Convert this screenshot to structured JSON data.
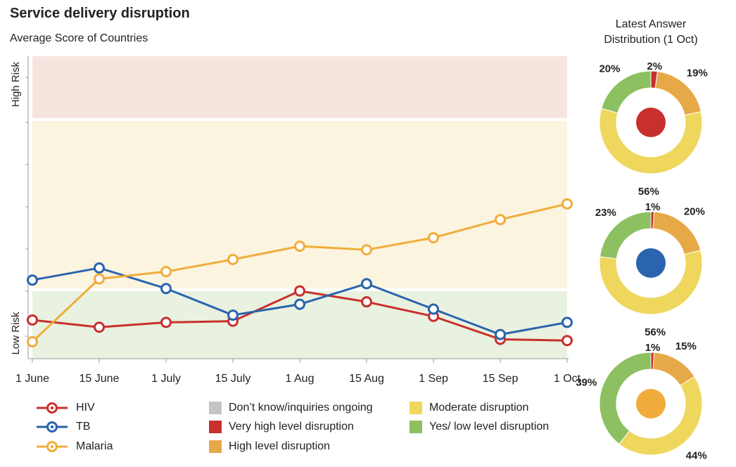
{
  "title": "Service delivery disruption",
  "subtitle": "Average Score of Countries",
  "donut_heading_line1": "Latest Answer",
  "donut_heading_line2": "Distribution (1 Oct)",
  "colors": {
    "hiv": "#c8302d",
    "tb": "#2a64ae",
    "malaria": "#f0ad3c",
    "high_band": "#f7e4de",
    "mid_band": "#fbf4df",
    "low_band": "#e9f2e0",
    "very_high": "#c8302d",
    "high": "#e7a847",
    "moderate": "#efd75d",
    "low": "#8cc061",
    "dont_know": "#c4c4c4"
  },
  "chart_data": [
    {
      "type": "line",
      "title": "Service delivery disruption",
      "subtitle": "Average Score of Countries",
      "x": [
        "1 June",
        "15 June",
        "1 July",
        "15 July",
        "1 Aug",
        "15 Aug",
        "1 Sep",
        "15 Sep",
        "1 Oct"
      ],
      "ylim": [
        0,
        1
      ],
      "band_labels": {
        "high": "High Risk",
        "low": "Low Risk"
      },
      "grid": false,
      "legend_position": "bottom-left",
      "series": [
        {
          "name": "HIV",
          "color": "#c8302d",
          "values": [
            0.872,
            0.896,
            0.88,
            0.876,
            0.776,
            0.812,
            0.86,
            0.936,
            0.94
          ]
        },
        {
          "name": "TB",
          "color": "#2a64ae",
          "values": [
            0.74,
            0.7,
            0.768,
            0.856,
            0.82,
            0.752,
            0.836,
            0.92,
            0.88
          ]
        },
        {
          "name": "Malaria",
          "color": "#f0ad3c",
          "values": [
            0.944,
            0.736,
            0.712,
            0.672,
            0.628,
            0.64,
            0.6,
            0.54,
            0.488
          ]
        }
      ]
    },
    {
      "type": "pie",
      "series_name": "HIV",
      "slices": [
        {
          "label": "Very high level disruption",
          "value": 2,
          "display": "2%",
          "color": "#c8302d"
        },
        {
          "label": "High level disruption",
          "value": 19,
          "display": "19%",
          "color": "#e7a847"
        },
        {
          "label": "Moderate disruption",
          "value": 56,
          "display": "56%",
          "color": "#efd75d"
        },
        {
          "label": "Yes/ low level disruption",
          "value": 20,
          "display": "20%",
          "color": "#8cc061"
        }
      ]
    },
    {
      "type": "pie",
      "series_name": "TB",
      "slices": [
        {
          "label": "Very high level disruption",
          "value": 1,
          "display": "1%",
          "color": "#c8302d"
        },
        {
          "label": "High level disruption",
          "value": 20,
          "display": "20%",
          "color": "#e7a847"
        },
        {
          "label": "Moderate disruption",
          "value": 56,
          "display": "56%",
          "color": "#efd75d"
        },
        {
          "label": "Yes/ low level disruption",
          "value": 23,
          "display": "23%",
          "color": "#8cc061"
        }
      ]
    },
    {
      "type": "pie",
      "series_name": "Malaria",
      "slices": [
        {
          "label": "Very high level disruption",
          "value": 1,
          "display": "1%",
          "color": "#c8302d"
        },
        {
          "label": "High level disruption",
          "value": 15,
          "display": "15%",
          "color": "#e7a847"
        },
        {
          "label": "Moderate disruption",
          "value": 44,
          "display": "44%",
          "color": "#efd75d"
        },
        {
          "label": "Yes/ low level disruption",
          "value": 39,
          "display": "39%",
          "color": "#8cc061"
        }
      ]
    }
  ],
  "legend": {
    "lines": [
      {
        "label": "HIV",
        "color": "#c8302d"
      },
      {
        "label": "TB",
        "color": "#2a64ae"
      },
      {
        "label": "Malaria",
        "color": "#f0ad3c"
      }
    ],
    "categories_col1": [
      {
        "label": "Don’t know/inquiries ongoing",
        "color": "#c4c4c4"
      },
      {
        "label": "Very high level disruption",
        "color": "#c8302d"
      },
      {
        "label": "High level disruption",
        "color": "#e7a847"
      }
    ],
    "categories_col2": [
      {
        "label": "Moderate disruption",
        "color": "#efd75d"
      },
      {
        "label": "Yes/ low level disruption",
        "color": "#8cc061"
      }
    ]
  }
}
